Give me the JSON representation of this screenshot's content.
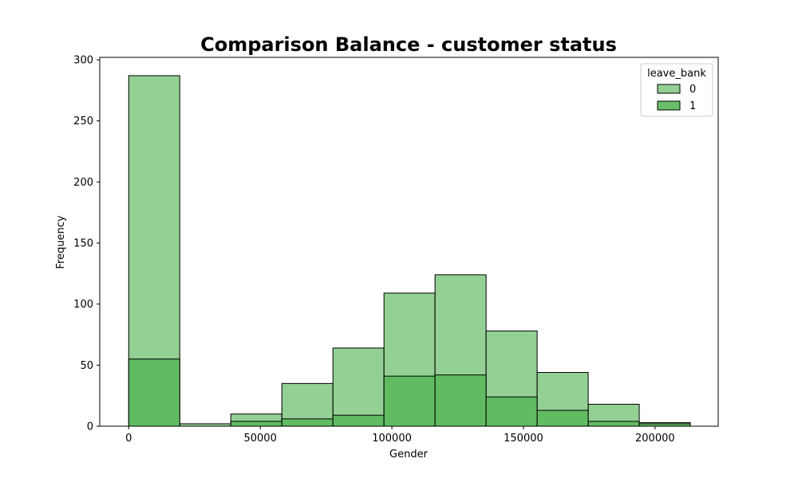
{
  "chart_data": {
    "type": "bar",
    "title": "Comparison Balance - customer status",
    "xlabel": "Gender",
    "ylabel": "Frequency",
    "xlim": [
      -11000,
      224000
    ],
    "ylim": [
      0,
      302
    ],
    "xticks": [
      0,
      50000,
      100000,
      150000,
      200000
    ],
    "xtick_labels": [
      "0",
      "50000",
      "100000",
      "150000",
      "200000"
    ],
    "yticks": [
      0,
      50,
      100,
      150,
      200,
      250,
      300
    ],
    "ytick_labels": [
      "0",
      "50",
      "100",
      "150",
      "200",
      "250",
      "300"
    ],
    "bin_edges": [
      0,
      19400,
      38800,
      58200,
      77600,
      97000,
      116400,
      135800,
      155200,
      174600,
      194000,
      213400
    ],
    "stacked": false,
    "legend": {
      "title": "leave_bank",
      "position": "top-right"
    },
    "series": [
      {
        "name": "0",
        "color": "#5cb85c",
        "fill_opacity": 0.66,
        "values": [
          287,
          2,
          10,
          35,
          64,
          109,
          124,
          78,
          44,
          18,
          3
        ]
      },
      {
        "name": "1",
        "color": "#5cb85c",
        "fill_opacity": 0.92,
        "values": [
          55,
          0,
          4,
          6,
          9,
          41,
          42,
          24,
          13,
          4,
          2
        ]
      }
    ]
  }
}
